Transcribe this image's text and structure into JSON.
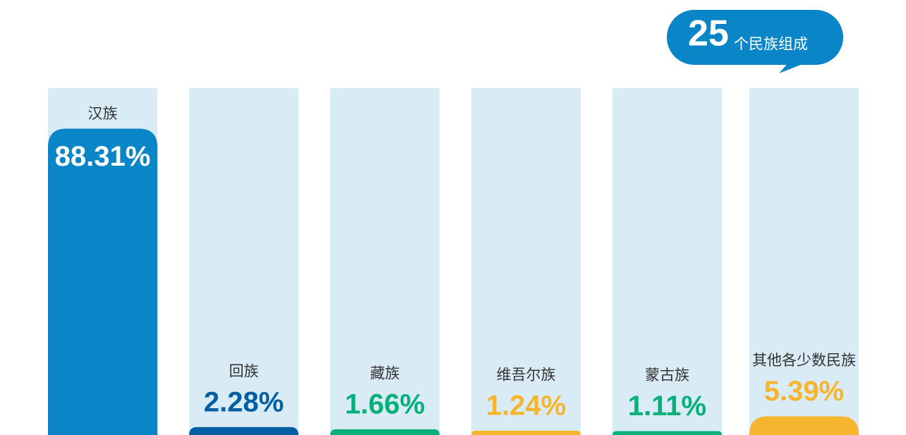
{
  "chart_data": {
    "type": "bar",
    "categories": [
      "汉族",
      "回族",
      "藏族",
      "维吾尔族",
      "蒙古族",
      "其他各少数民族"
    ],
    "values": [
      88.31,
      2.28,
      1.66,
      1.24,
      1.11,
      5.39
    ],
    "value_labels": [
      "88.31%",
      "2.28%",
      "1.66%",
      "1.24%",
      "1.11%",
      "5.39%"
    ],
    "colors": [
      "#0a86c8",
      "#005fa3",
      "#06b07a",
      "#f5b52e",
      "#06b07a",
      "#f5b52e"
    ],
    "track_color": "#d9ebf5",
    "ylim": [
      0,
      100
    ],
    "annotation": {
      "number": 25,
      "text": "个民族组成"
    }
  }
}
